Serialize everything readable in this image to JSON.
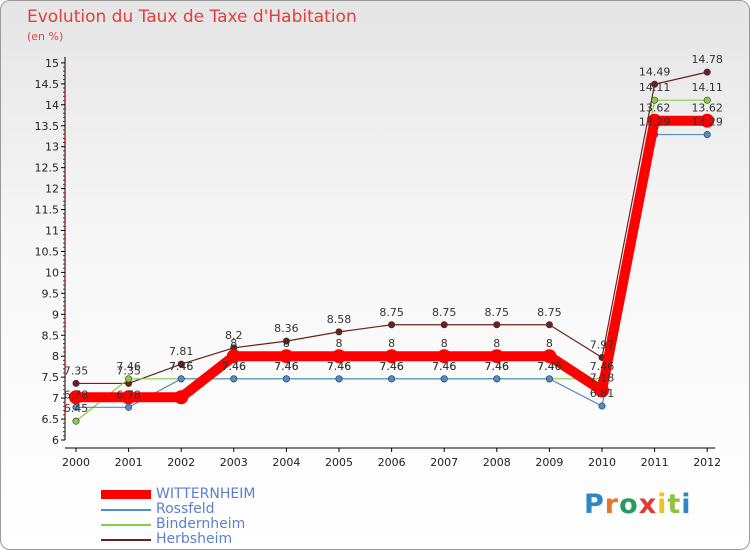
{
  "title": "Evolution du Taux de Taxe d'Habitation",
  "subtitle": "(en %)",
  "brand": {
    "text": "Proxiti",
    "letter_colors": [
      "#2e87c4",
      "#e2792a",
      "#2a9a62",
      "#e03a3a",
      "#f0c21e",
      "#8cc63f",
      "#2e87c4"
    ]
  },
  "chart_data": {
    "type": "line",
    "x": [
      "2000",
      "2001",
      "2002",
      "2003",
      "2004",
      "2005",
      "2006",
      "2007",
      "2008",
      "2009",
      "2010",
      "2011",
      "2012"
    ],
    "ylim": [
      6,
      15
    ],
    "yticks": [
      "6",
      "6.5",
      "7",
      "7.5",
      "8",
      "8.5",
      "9",
      "9.5",
      "10",
      "10.5",
      "11",
      "11.5",
      "12",
      "12.5",
      "13",
      "13.5",
      "14",
      "14.5",
      "15"
    ],
    "grid": false,
    "series": [
      {
        "name": "WITTERNHEIM",
        "color": "#ff0000",
        "values": [
          7.02,
          7.02,
          7.02,
          8,
          8,
          8,
          8,
          8,
          8,
          8,
          7.18,
          13.62,
          13.62
        ],
        "labels": [
          "",
          "",
          "",
          "8",
          "8",
          "8",
          "8",
          "8",
          "8",
          "8",
          "7.18",
          "13.62",
          "13.62"
        ]
      },
      {
        "name": "Rossfeld",
        "color": "#4f8ec9",
        "values": [
          6.78,
          6.78,
          7.46,
          7.46,
          7.46,
          7.46,
          7.46,
          7.46,
          7.46,
          7.46,
          6.81,
          13.29,
          13.29
        ],
        "labels": [
          "6.78",
          "6.78",
          "7.46",
          "7.46",
          "7.46",
          "7.46",
          "7.46",
          "7.46",
          "7.46",
          "7.46",
          "6.81",
          "13.29",
          "13.29"
        ]
      },
      {
        "name": "Bindernheim",
        "color": "#88cc44",
        "values": [
          6.45,
          7.46,
          7.46,
          7.46,
          7.46,
          7.46,
          7.46,
          7.46,
          7.46,
          7.46,
          7.46,
          14.11,
          14.11
        ],
        "labels": [
          "6.45",
          "7.46",
          "7.46",
          "7.46",
          "7.46",
          "7.46",
          "7.46",
          "7.46",
          "7.46",
          "7.46",
          "7.46",
          "14.11",
          "14.11"
        ]
      },
      {
        "name": "Herbsheim",
        "color": "#6e1f1f",
        "values": [
          7.35,
          7.35,
          7.81,
          8.2,
          8.36,
          8.58,
          8.75,
          8.75,
          8.75,
          8.75,
          7.97,
          14.49,
          14.78
        ],
        "labels": [
          "7.35",
          "7.35",
          "7.81",
          "8.2",
          "8.36",
          "8.58",
          "8.75",
          "8.75",
          "8.75",
          "8.75",
          "7.97",
          "14.49",
          "14.78"
        ]
      }
    ]
  }
}
